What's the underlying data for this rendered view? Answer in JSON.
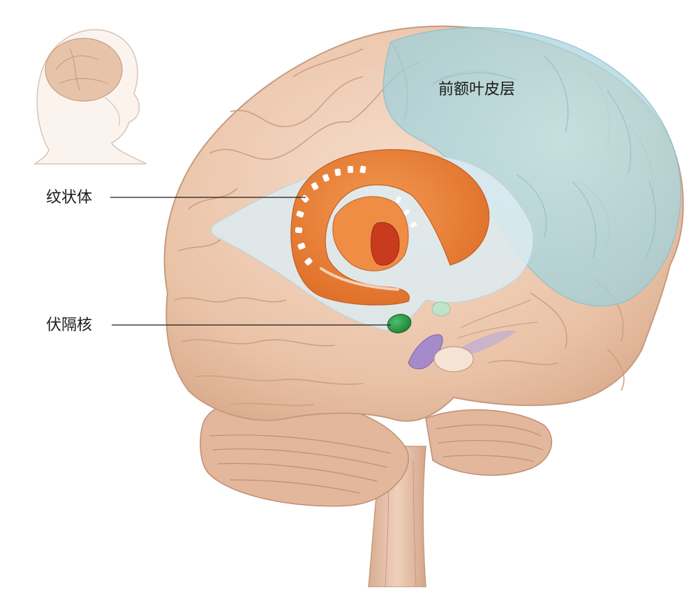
{
  "labels": {
    "prefrontal_cortex": "前额叶皮层",
    "striatum": "纹状体",
    "nucleus_accumbens": "伏隔核"
  },
  "colors": {
    "brain_tissue": "#ecc8ae",
    "brain_outline": "#c69a7f",
    "prefrontal_highlight": "#a9d7df",
    "striatum": "#e8843a",
    "striatum_inner": "#c93b1e",
    "nucleus_accumbens": "#2e9c48",
    "ventricle": "#d7e8ef",
    "purple_structure": "#8f75c2",
    "leader_line": "#1a1a1a"
  }
}
